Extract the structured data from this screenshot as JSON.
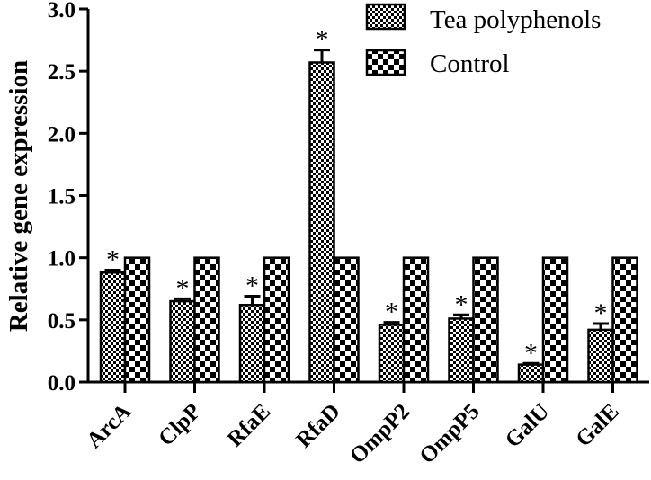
{
  "chart_data": {
    "type": "bar",
    "title": "",
    "xlabel": "",
    "ylabel": "Relative gene expression",
    "ylim": [
      0,
      3.0
    ],
    "yticks": [
      "0.0",
      "0.5",
      "1.0",
      "1.5",
      "2.0",
      "2.5",
      "3.0"
    ],
    "grid": false,
    "legend_position": "top-right",
    "categories": [
      "ArcA",
      "ClpP",
      "RfaE",
      "RfaD",
      "OmpP2",
      "OmpP5",
      "GalU",
      "GalE"
    ],
    "series": [
      {
        "name": "Tea polyphenols",
        "pattern": "fine-checker",
        "values": [
          0.88,
          0.65,
          0.62,
          2.57,
          0.46,
          0.51,
          0.14,
          0.42
        ],
        "errors": [
          0.02,
          0.02,
          0.07,
          0.1,
          0.02,
          0.03,
          0.01,
          0.05
        ],
        "annotation": "*"
      },
      {
        "name": "Control",
        "pattern": "coarse-checker",
        "values": [
          1.0,
          1.0,
          1.0,
          1.0,
          1.0,
          1.0,
          1.0,
          1.0
        ]
      }
    ]
  }
}
